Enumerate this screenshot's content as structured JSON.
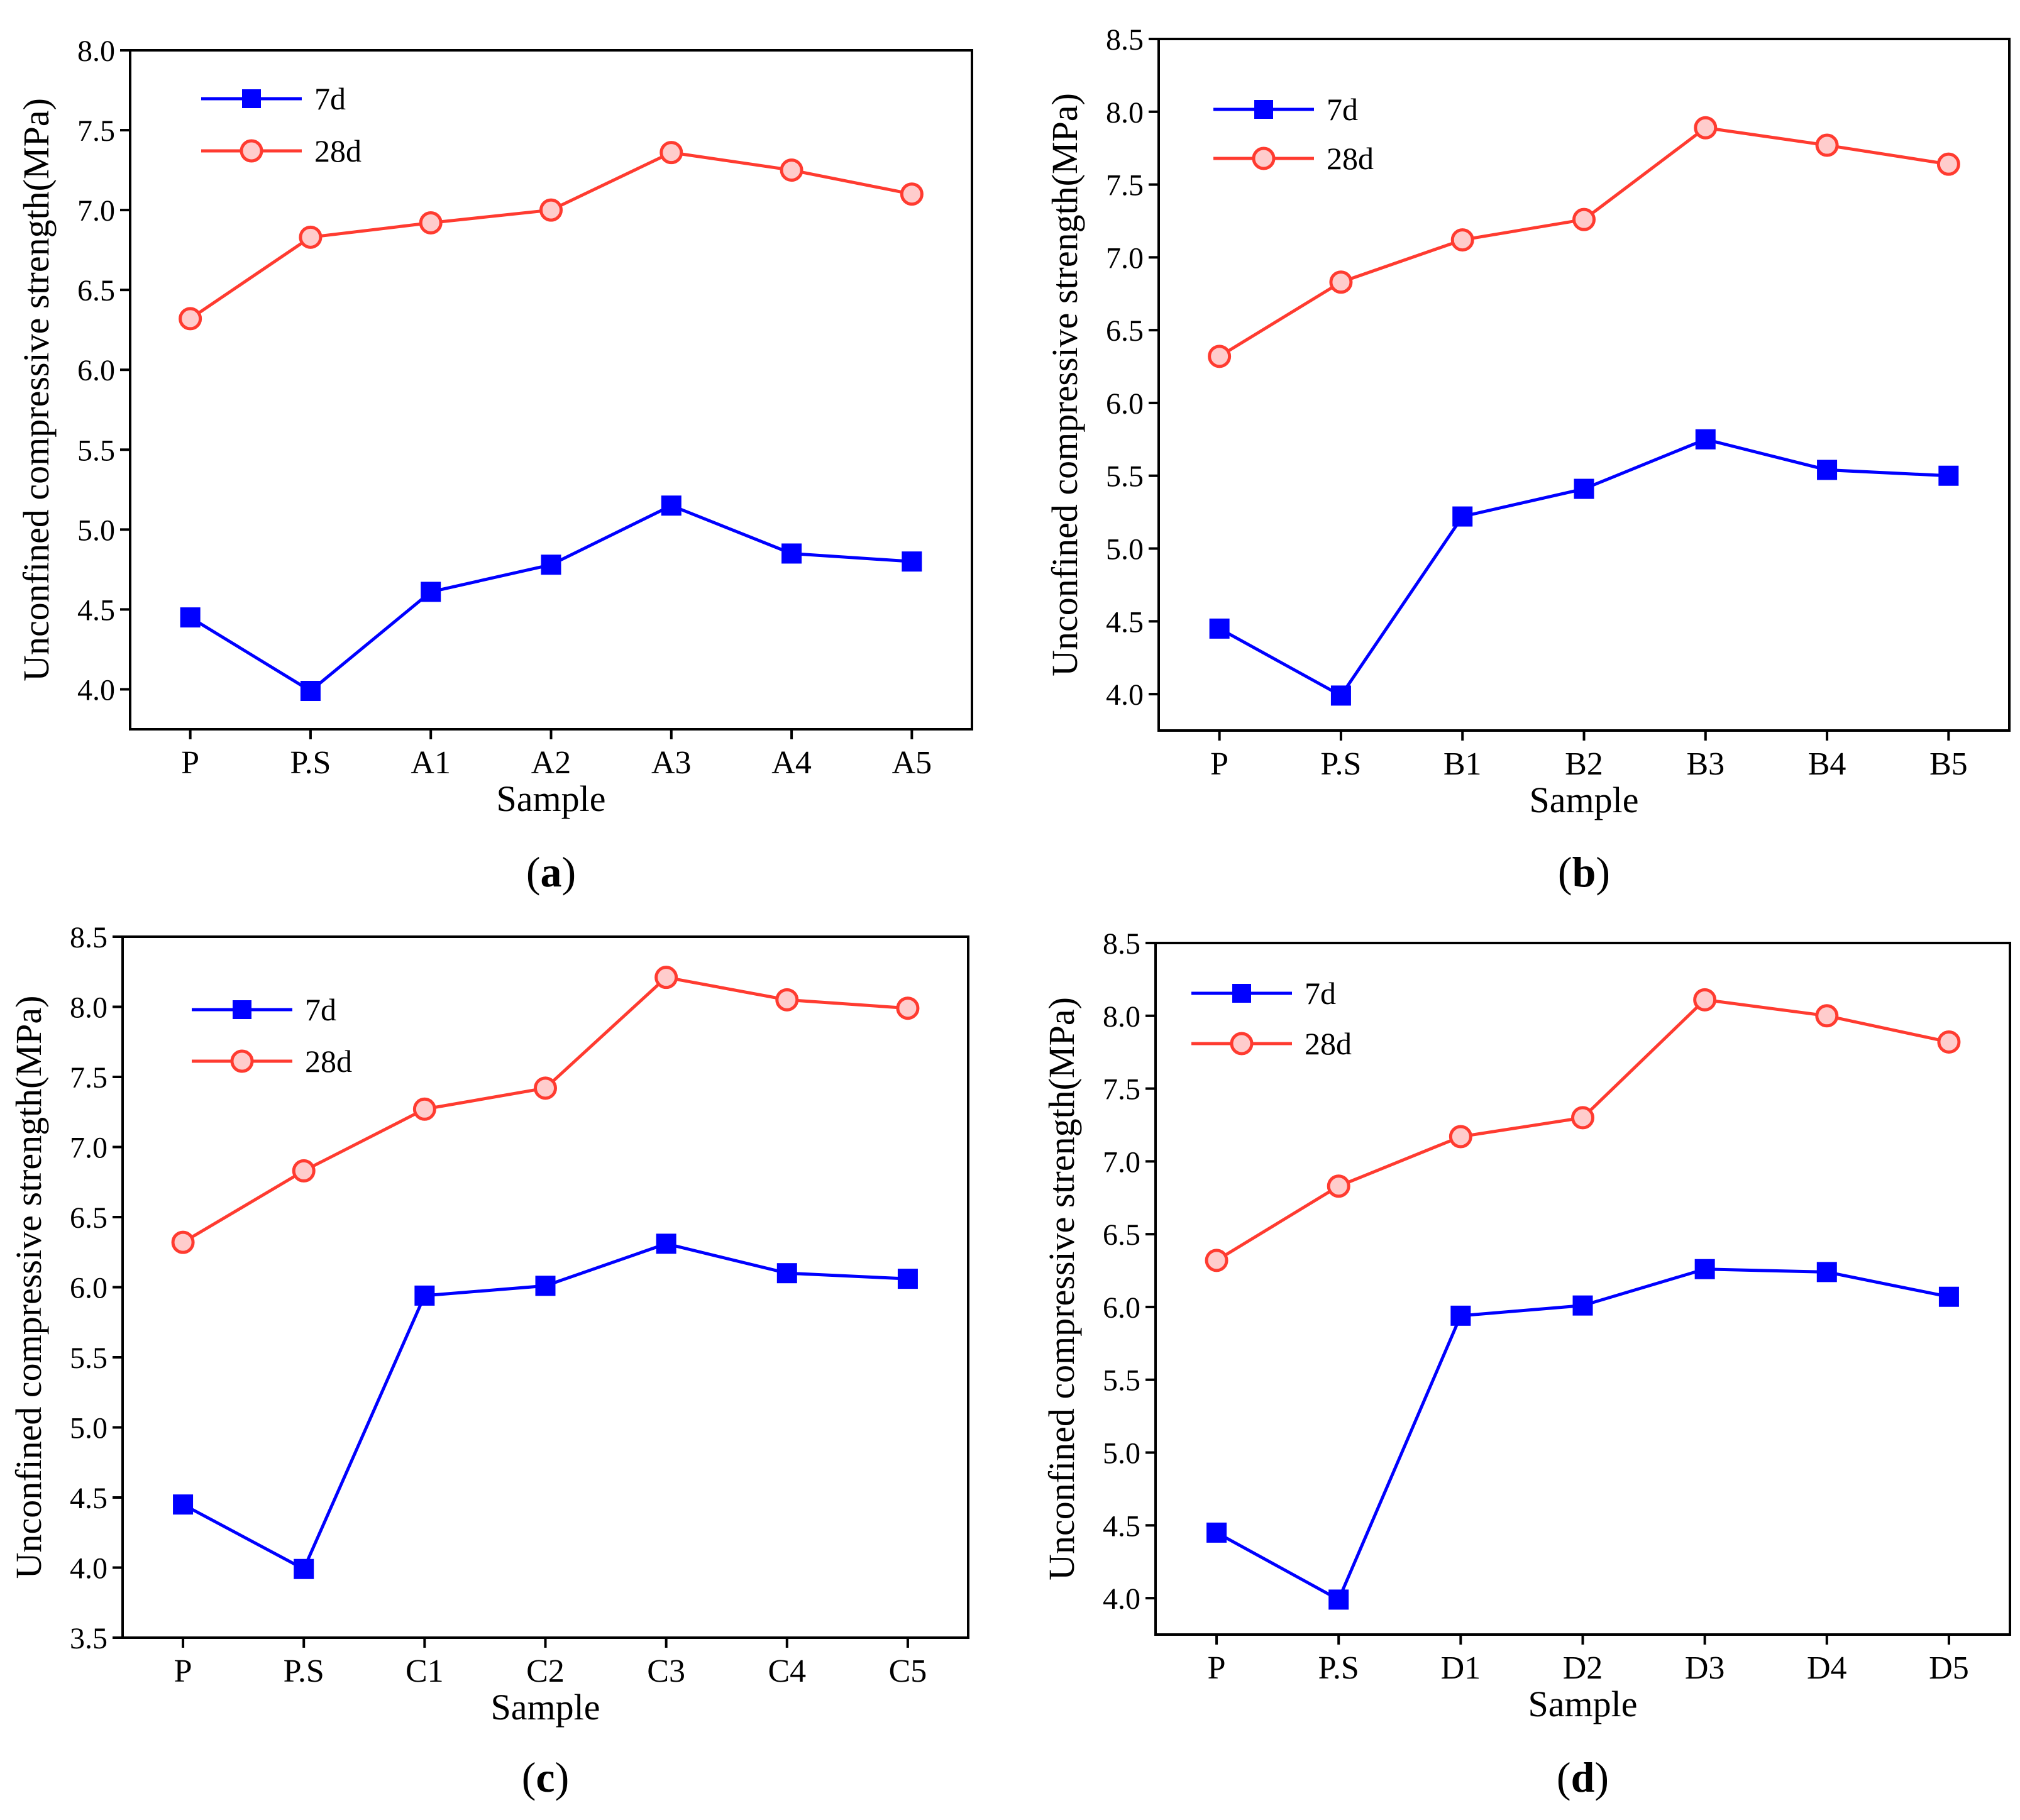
{
  "figure": {
    "legend_labels": [
      "7d",
      "28d"
    ],
    "series_colors": {
      "7d": "#0000ff",
      "28d": "#ff3b30"
    },
    "marker_fill_28d": "#ffcccc"
  },
  "chart_data": [
    {
      "type": "line",
      "panel": "a",
      "xlabel": "Sample",
      "ylabel": "Unconfined compressive strength(MPa)",
      "categories": [
        "P",
        "P.S",
        "A1",
        "A2",
        "A3",
        "A4",
        "A5"
      ],
      "ylim": [
        3.75,
        8.0
      ],
      "yticks": [
        "4.0",
        "4.5",
        "5.0",
        "5.5",
        "6.0",
        "6.5",
        "7.0",
        "7.5",
        "8.0"
      ],
      "legend": "top-left",
      "series": [
        {
          "name": "7d",
          "values": [
            4.45,
            3.99,
            4.61,
            4.78,
            5.15,
            4.85,
            4.8
          ]
        },
        {
          "name": "28d",
          "values": [
            6.32,
            6.83,
            6.92,
            7.0,
            7.36,
            7.25,
            7.1
          ]
        }
      ]
    },
    {
      "type": "line",
      "panel": "b",
      "xlabel": "Sample",
      "ylabel": "Unconfined compressive strength(MPa)",
      "categories": [
        "P",
        "P.S",
        "B1",
        "B2",
        "B3",
        "B4",
        "B5"
      ],
      "ylim": [
        3.75,
        8.5
      ],
      "yticks": [
        "4.0",
        "4.5",
        "5.0",
        "5.5",
        "6.0",
        "6.5",
        "7.0",
        "7.5",
        "8.0",
        "8.5"
      ],
      "legend": "top-left",
      "series": [
        {
          "name": "7d",
          "values": [
            4.45,
            3.99,
            5.22,
            5.41,
            5.75,
            5.54,
            5.5
          ]
        },
        {
          "name": "28d",
          "values": [
            6.32,
            6.83,
            7.12,
            7.26,
            7.89,
            7.77,
            7.64
          ]
        }
      ]
    },
    {
      "type": "line",
      "panel": "c",
      "xlabel": "Sample",
      "ylabel": "Unconfined compressive strength(MPa)",
      "categories": [
        "P",
        "P.S",
        "C1",
        "C2",
        "C3",
        "C4",
        "C5"
      ],
      "ylim": [
        3.5,
        8.5
      ],
      "yticks": [
        "3.5",
        "4.0",
        "4.5",
        "5.0",
        "5.5",
        "6.0",
        "6.5",
        "7.0",
        "7.5",
        "8.0",
        "8.5"
      ],
      "legend": "top-left",
      "series": [
        {
          "name": "7d",
          "values": [
            4.45,
            3.99,
            5.94,
            6.01,
            6.31,
            6.1,
            6.06
          ]
        },
        {
          "name": "28d",
          "values": [
            6.32,
            6.83,
            7.27,
            7.42,
            8.21,
            8.05,
            7.99
          ]
        }
      ]
    },
    {
      "type": "line",
      "panel": "d",
      "xlabel": "Sample",
      "ylabel": "Unconfined compressive strength(MPa)",
      "categories": [
        "P",
        "P.S",
        "D1",
        "D2",
        "D3",
        "D4",
        "D5"
      ],
      "ylim": [
        3.75,
        8.5
      ],
      "yticks": [
        "4.0",
        "4.5",
        "5.0",
        "5.5",
        "6.0",
        "6.5",
        "7.0",
        "7.5",
        "8.0",
        "8.5"
      ],
      "legend": "top-left",
      "series": [
        {
          "name": "7d",
          "values": [
            4.45,
            3.99,
            5.94,
            6.01,
            6.26,
            6.24,
            6.07
          ]
        },
        {
          "name": "28d",
          "values": [
            6.32,
            6.83,
            7.17,
            7.3,
            8.11,
            8.0,
            7.82
          ]
        }
      ]
    }
  ]
}
